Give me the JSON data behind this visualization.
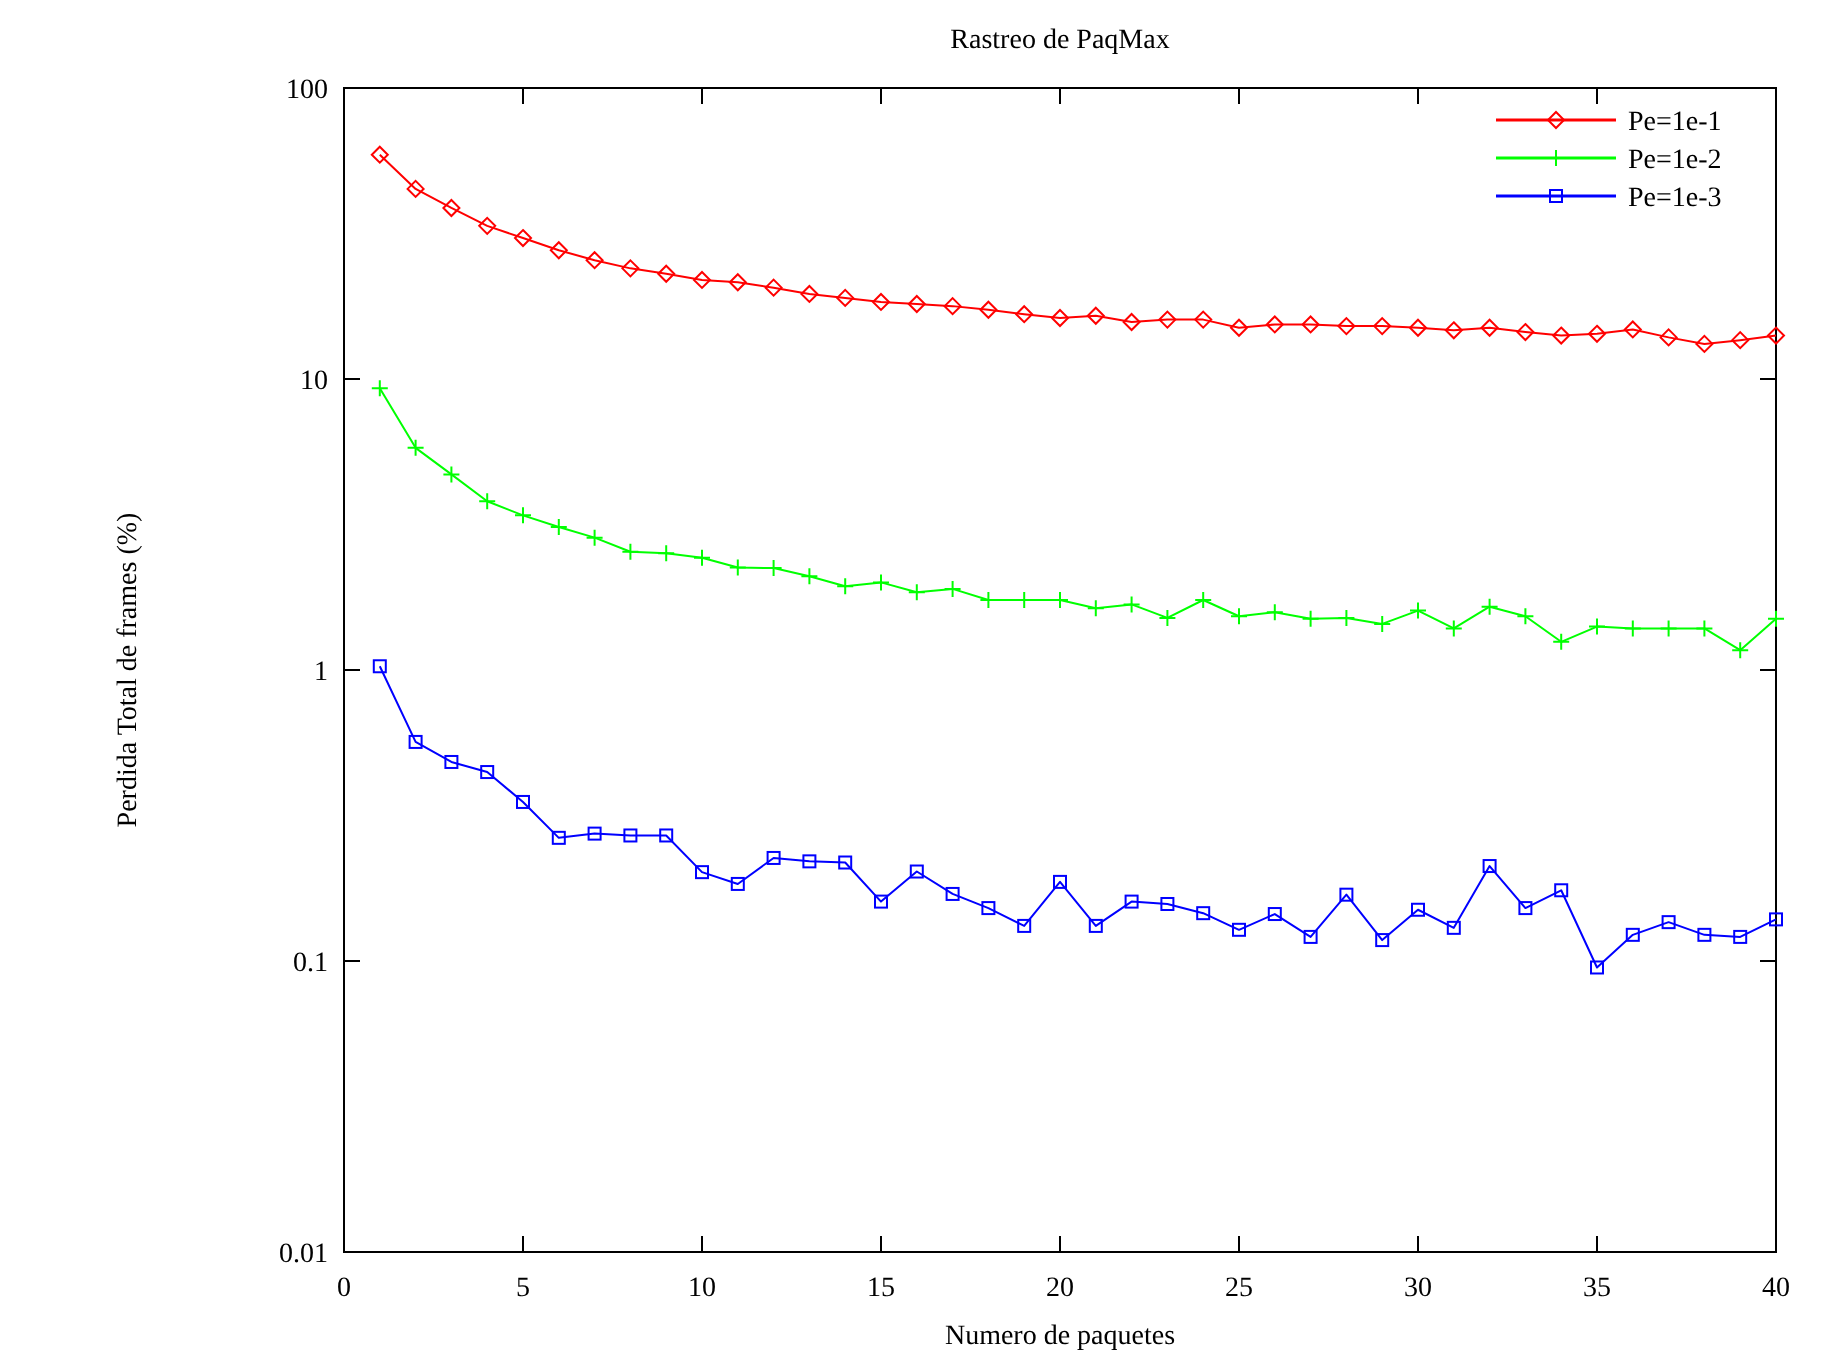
{
  "chart_data": {
    "type": "line",
    "title": "Rastreo de PaqMax",
    "xlabel": "Numero de paquetes",
    "ylabel": "Perdida Total de frames (%)",
    "x": [
      1,
      2,
      3,
      4,
      5,
      6,
      7,
      8,
      9,
      10,
      11,
      12,
      13,
      14,
      15,
      16,
      17,
      18,
      19,
      20,
      21,
      22,
      23,
      24,
      25,
      26,
      27,
      28,
      29,
      30,
      31,
      32,
      33,
      34,
      35,
      36,
      37,
      38,
      39,
      40
    ],
    "series": [
      {
        "name": "Pe=1e-1",
        "color": "#ff0000",
        "marker": "diamond",
        "values": [
          59,
          45,
          38.7,
          33.6,
          30.5,
          27.7,
          25.6,
          24,
          23,
          21.9,
          21.5,
          20.6,
          19.6,
          19,
          18.4,
          18.1,
          17.8,
          17.3,
          16.7,
          16.2,
          16.5,
          15.7,
          16,
          16,
          15,
          15.4,
          15.4,
          15.2,
          15.2,
          15,
          14.7,
          15,
          14.5,
          14.1,
          14.3,
          14.8,
          13.9,
          13.2,
          13.6,
          14.1
        ]
      },
      {
        "name": "Pe=1e-2",
        "color": "#00ff00",
        "marker": "cross",
        "values": [
          9.3,
          5.8,
          4.7,
          3.8,
          3.4,
          3.1,
          2.85,
          2.55,
          2.52,
          2.43,
          2.25,
          2.24,
          2.1,
          1.94,
          2.0,
          1.85,
          1.9,
          1.74,
          1.74,
          1.74,
          1.63,
          1.68,
          1.51,
          1.74,
          1.53,
          1.58,
          1.5,
          1.51,
          1.44,
          1.6,
          1.39,
          1.65,
          1.53,
          1.25,
          1.41,
          1.39,
          1.39,
          1.39,
          1.17,
          1.5
        ]
      },
      {
        "name": "Pe=1e-3",
        "color": "#0000ff",
        "marker": "square",
        "values": [
          1.03,
          0.566,
          0.483,
          0.446,
          0.352,
          0.265,
          0.274,
          0.27,
          0.27,
          0.202,
          0.184,
          0.226,
          0.22,
          0.218,
          0.16,
          0.203,
          0.17,
          0.152,
          0.132,
          0.187,
          0.132,
          0.16,
          0.157,
          0.146,
          0.128,
          0.145,
          0.121,
          0.169,
          0.118,
          0.15,
          0.13,
          0.212,
          0.152,
          0.175,
          0.095,
          0.123,
          0.136,
          0.123,
          0.121,
          0.139
        ]
      }
    ],
    "xlim": [
      0,
      40
    ],
    "xticks": [
      0,
      5,
      10,
      15,
      20,
      25,
      30,
      35,
      40
    ],
    "ylim": [
      0.01,
      100
    ],
    "yticks": [
      0.01,
      0.1,
      1,
      10,
      100
    ],
    "log": "y",
    "legend": "top right",
    "grid": false
  }
}
